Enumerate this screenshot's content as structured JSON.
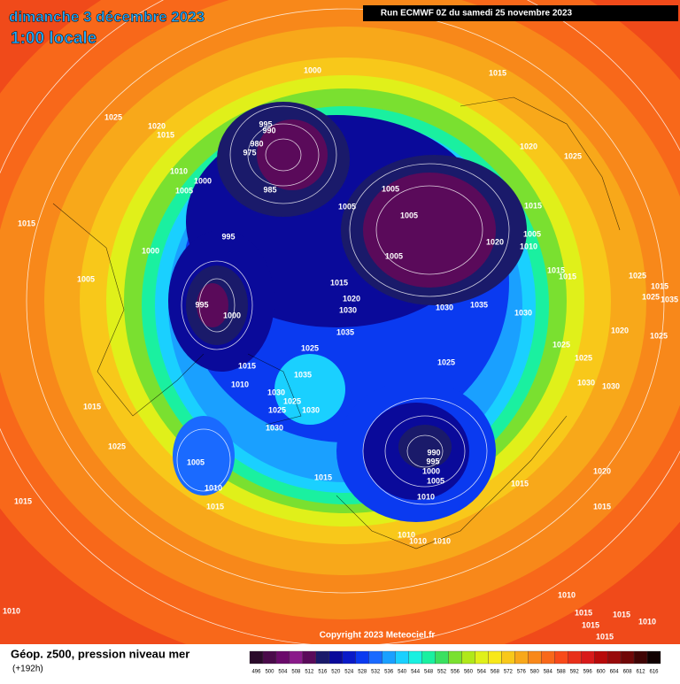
{
  "header": {
    "date": "dimanche 3 décembre 2023",
    "time": "1:00 locale",
    "run": "Run ECMWF 0Z du samedi 25 novembre 2023"
  },
  "map": {
    "isobar_labels": [
      "1000",
      "1015",
      "1025",
      "1020",
      "1015",
      "995",
      "990",
      "980",
      "975",
      "1010",
      "1000",
      "1005",
      "985",
      "1005",
      "1005",
      "1005",
      "1020",
      "1025",
      "1015",
      "1005",
      "1010",
      "1020",
      "1015",
      "995",
      "1000",
      "1005",
      "1005",
      "1015",
      "1015",
      "1015",
      "1020",
      "995",
      "1000",
      "1030",
      "1030",
      "1035",
      "1030",
      "1035",
      "1025",
      "1015",
      "1025",
      "1035",
      "1010",
      "1030",
      "1025",
      "1025",
      "1030",
      "1015",
      "1030",
      "1025",
      "1005",
      "990",
      "995",
      "1000",
      "1005",
      "1015",
      "1010",
      "1015",
      "1010",
      "1015",
      "1020",
      "1015",
      "1015",
      "1010",
      "1010",
      "1010",
      "1010",
      "1010",
      "1015",
      "1015",
      "1015",
      "1010",
      "1015",
      "1025",
      "1015",
      "1025",
      "1035",
      "1020",
      "1025",
      "1025",
      "1025",
      "1030",
      "1030"
    ],
    "copyright": "Copyright 2023 Meteociel.fr"
  },
  "legend": {
    "title": "Géop. z500, pression niveau mer",
    "lead": "(+192h)",
    "values": [
      496,
      500,
      504,
      508,
      512,
      516,
      520,
      524,
      528,
      532,
      536,
      540,
      544,
      548,
      552,
      556,
      560,
      564,
      568,
      572,
      576,
      580,
      584,
      588,
      592,
      596,
      600,
      604,
      608,
      612,
      616
    ],
    "colors": [
      "#2a0a2a",
      "#4a0a4a",
      "#6a0a6a",
      "#8a1a8a",
      "#5a0a5a",
      "#1a1a6a",
      "#0a0a9a",
      "#0a1ac8",
      "#0a3af0",
      "#1a6aff",
      "#1aa0ff",
      "#1ad0ff",
      "#1af0e0",
      "#1af0a0",
      "#3ae060",
      "#7ae030",
      "#b0e81a",
      "#e0f01a",
      "#f8e81a",
      "#f8c81a",
      "#f8a81a",
      "#f8881a",
      "#f8681a",
      "#f84a1a",
      "#e8301a",
      "#d81a1a",
      "#b80a0a",
      "#980a0a",
      "#700808",
      "#400404",
      "#100000"
    ]
  }
}
